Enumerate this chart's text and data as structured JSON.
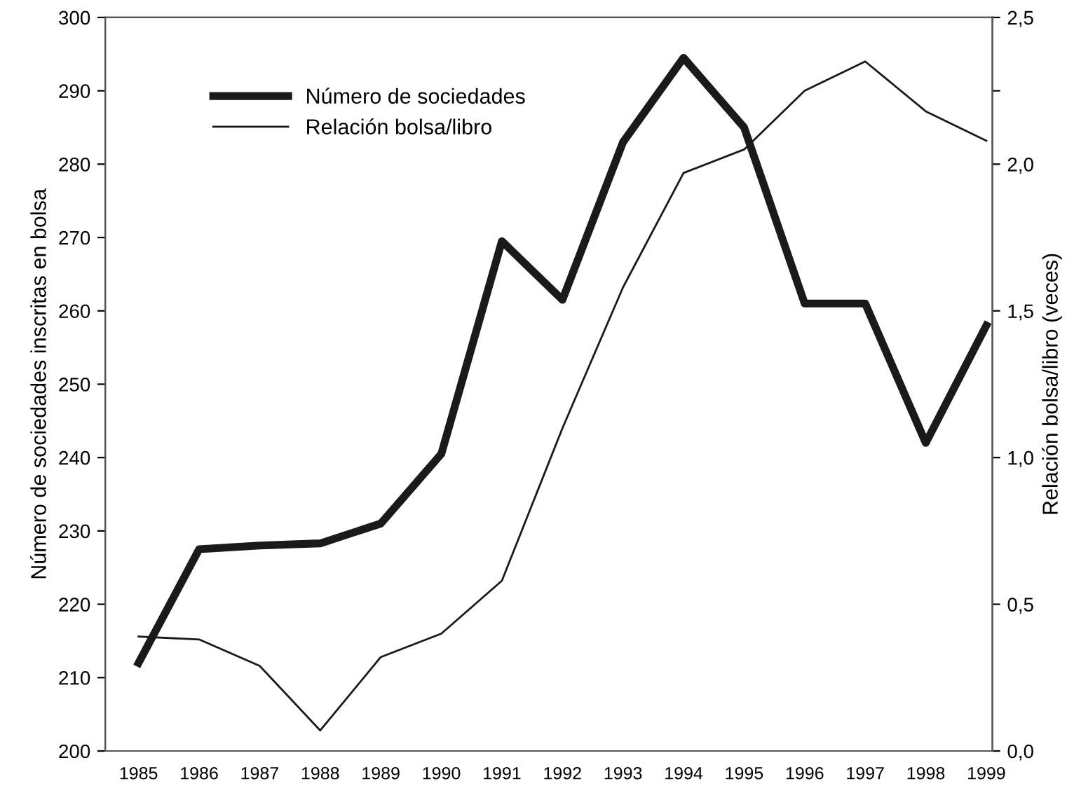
{
  "chart_data": {
    "type": "line",
    "categories": [
      "1985",
      "1986",
      "1987",
      "1988",
      "1989",
      "1990",
      "1991",
      "1992",
      "1993",
      "1994",
      "1995",
      "1996",
      "1997",
      "1998",
      "1999"
    ],
    "series": [
      {
        "name": "Número de sociedades",
        "color": "#1a1a1a",
        "values": [
          212,
          227.5,
          228,
          228.3,
          231,
          240.5,
          269.5,
          261.5,
          283,
          294.5,
          285,
          261,
          261,
          242,
          258
        ]
      },
      {
        "name": "Relación bolsa/libro",
        "color": "#1a1a1a",
        "axis": "y2",
        "values": [
          0.39,
          0.38,
          0.29,
          0.07,
          0.32,
          0.4,
          0.58,
          1.1,
          1.58,
          1.97,
          2.05,
          2.25,
          2.35,
          2.18,
          2.08
        ]
      }
    ],
    "ylabel": "Número de sociedades inscritas en bolsa",
    "y2label": "Relación bolsa/libro (veces)",
    "ylim": [
      200,
      300
    ],
    "yticks": [
      200,
      210,
      220,
      230,
      240,
      250,
      260,
      270,
      280,
      290,
      300
    ],
    "y2lim": [
      0,
      2.5
    ],
    "y2ticks": [
      {
        "value": 0,
        "label": "0,0"
      },
      {
        "value": 0.5,
        "label": "0,5"
      },
      {
        "value": 1,
        "label": "1,0"
      },
      {
        "value": 1.5,
        "label": "1,5"
      },
      {
        "value": 2,
        "label": "2,0"
      },
      {
        "value": 2.25,
        "label": null
      },
      {
        "value": 2.5,
        "label": "2,5"
      }
    ],
    "legend": "top left",
    "grid": false,
    "marker": "none",
    "line_style": "solid"
  }
}
